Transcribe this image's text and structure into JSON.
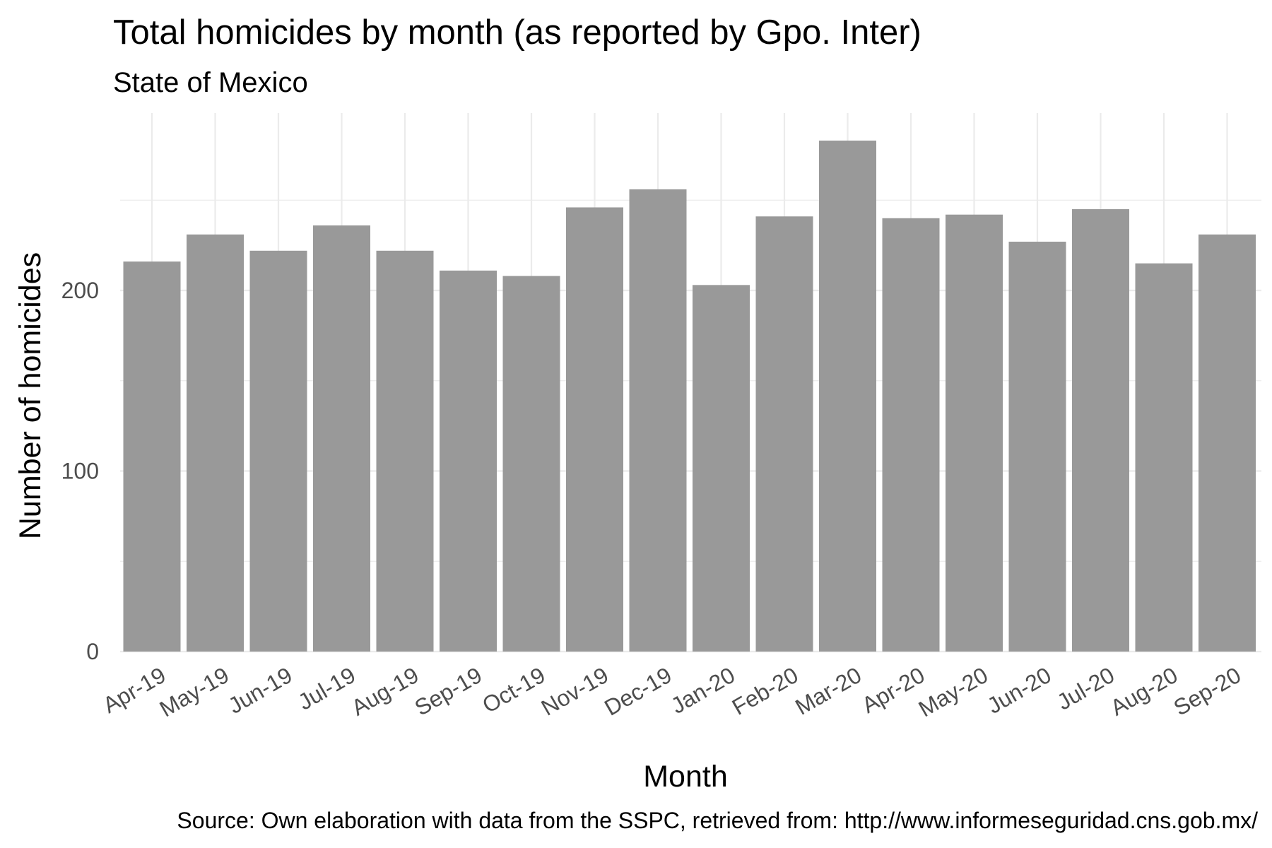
{
  "chart_data": {
    "type": "bar",
    "title": "Total homicides by month (as reported by Gpo. Inter)",
    "subtitle": "State of Mexico",
    "xlabel": "Month",
    "ylabel": "Number of homicides",
    "caption": "Source: Own elaboration with data from the SSPC, retrieved from: http://www.informeseguridad.cns.gob.mx/",
    "categories": [
      "Apr-19",
      "May-19",
      "Jun-19",
      "Jul-19",
      "Aug-19",
      "Sep-19",
      "Oct-19",
      "Nov-19",
      "Dec-19",
      "Jan-20",
      "Feb-20",
      "Mar-20",
      "Apr-20",
      "May-20",
      "Jun-20",
      "Jul-20",
      "Aug-20",
      "Sep-20"
    ],
    "values": [
      216,
      231,
      222,
      236,
      222,
      211,
      208,
      246,
      256,
      203,
      241,
      283,
      240,
      242,
      227,
      245,
      215,
      231
    ],
    "yticks": [
      0,
      100,
      200
    ],
    "ylim": [
      0,
      296
    ],
    "grid": true,
    "legend": "none",
    "bar_color": "#999999"
  }
}
